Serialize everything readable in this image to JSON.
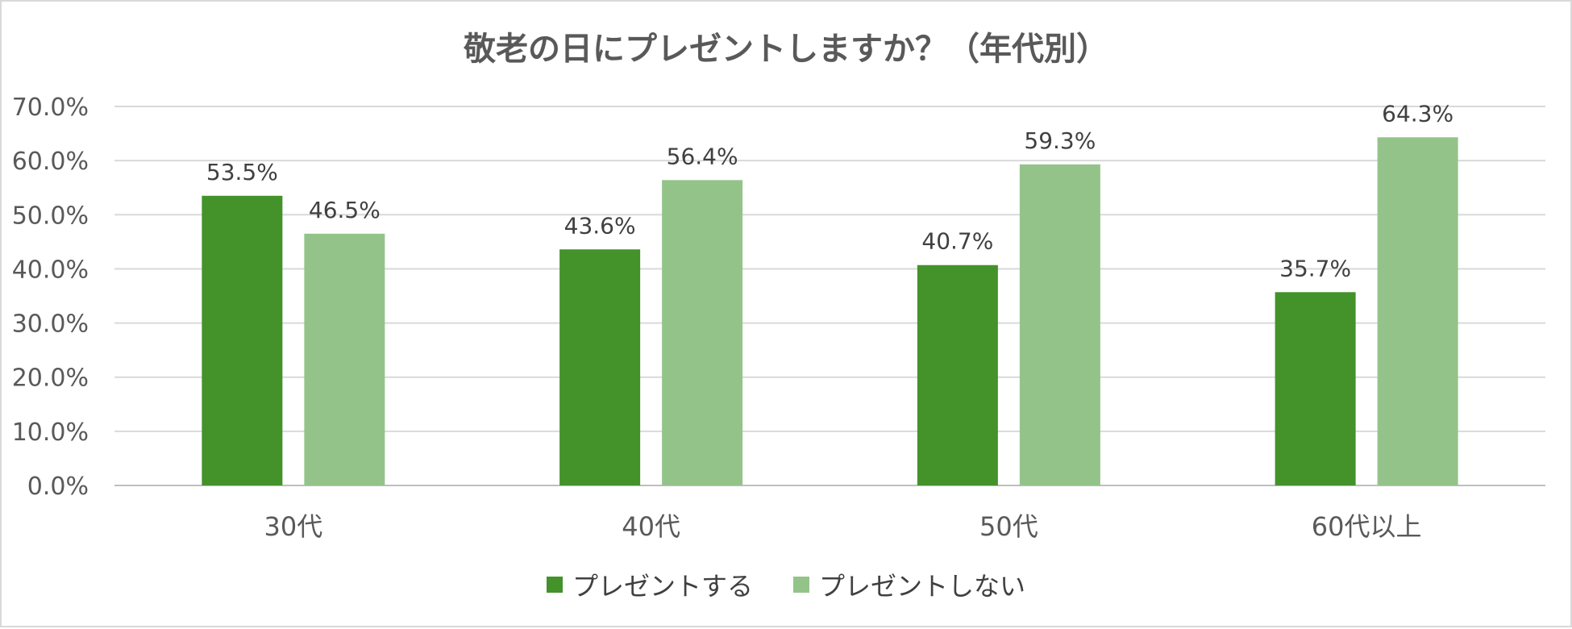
{
  "chart_data": {
    "type": "bar",
    "title": "敬老の日にプレゼントしますか？（年代別）",
    "categories": [
      "30代",
      "40代",
      "50代",
      "60代以上"
    ],
    "series": [
      {
        "name": "プレゼントする",
        "color": "#43922a",
        "values": [
          53.5,
          43.6,
          40.7,
          35.7
        ],
        "labels": [
          "53.5%",
          "43.6%",
          "40.7%",
          "35.7%"
        ]
      },
      {
        "name": "プレゼントしない",
        "color": "#94c38a",
        "values": [
          46.5,
          56.4,
          59.3,
          64.3
        ],
        "labels": [
          "46.5%",
          "56.4%",
          "59.3%",
          "64.3%"
        ]
      }
    ],
    "y_ticks": [
      "0.0%",
      "10.0%",
      "20.0%",
      "30.0%",
      "40.0%",
      "50.0%",
      "60.0%",
      "70.0%"
    ],
    "ylim": [
      0,
      70
    ],
    "grid": true,
    "legend_position": "bottom"
  }
}
